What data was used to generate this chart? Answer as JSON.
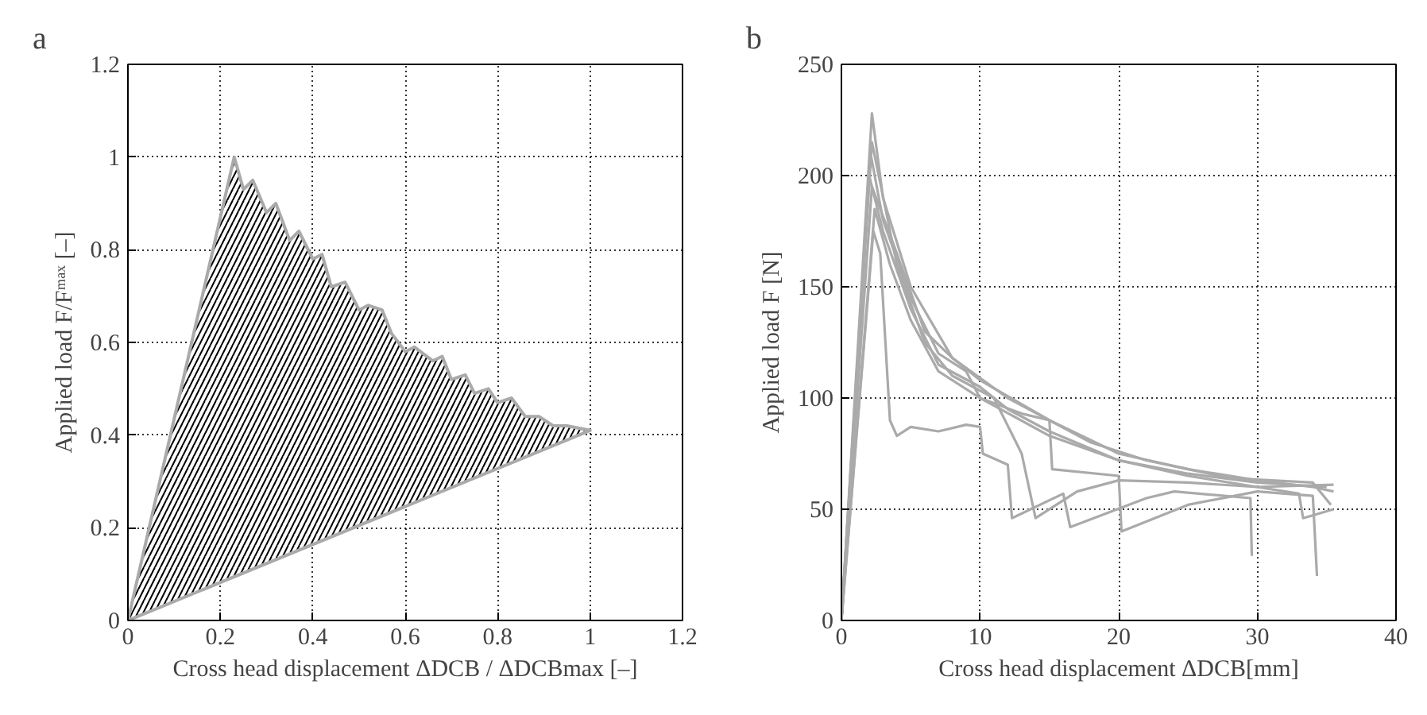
{
  "chart_data": [
    {
      "type": "area",
      "title": "a",
      "xlabel": "Cross head displacement ΔDCB / ΔDCBmax [–]",
      "ylabel": "Applied load F/Fᵐᵃˣ [–]",
      "xlim": [
        0,
        1.2
      ],
      "ylim": [
        0,
        1.2
      ],
      "xticks": [
        0,
        0.2,
        0.4,
        0.6,
        0.8,
        1,
        1.2
      ],
      "yticks": [
        0,
        0.2,
        0.4,
        0.6,
        0.8,
        1,
        1.2
      ],
      "grid": true,
      "series": [
        {
          "color": "#aaaaaa",
          "x": [
            0,
            0.23,
            0.25,
            0.27,
            0.3,
            0.32,
            0.35,
            0.37,
            0.4,
            0.42,
            0.44,
            0.47,
            0.5,
            0.52,
            0.55,
            0.57,
            0.6,
            0.62,
            0.66,
            0.68,
            0.7,
            0.73,
            0.75,
            0.78,
            0.8,
            0.83,
            0.86,
            0.89,
            0.92,
            0.95,
            1.0,
            0
          ],
          "values": [
            0,
            1.0,
            0.93,
            0.95,
            0.88,
            0.9,
            0.82,
            0.84,
            0.78,
            0.79,
            0.72,
            0.73,
            0.67,
            0.68,
            0.67,
            0.62,
            0.58,
            0.59,
            0.56,
            0.57,
            0.52,
            0.53,
            0.49,
            0.5,
            0.47,
            0.48,
            0.44,
            0.44,
            0.42,
            0.42,
            0.41,
            0
          ]
        }
      ]
    },
    {
      "type": "line",
      "title": "b",
      "xlabel": "Cross head displacement ΔDCB[mm]",
      "ylabel": "Applied load F [N]",
      "xlim": [
        0,
        40
      ],
      "ylim": [
        0,
        250
      ],
      "xticks": [
        0,
        10,
        20,
        30,
        40
      ],
      "yticks": [
        0,
        50,
        100,
        150,
        200,
        250
      ],
      "grid": true,
      "line_style": "solid",
      "series": [
        {
          "color": "#aaaaaa",
          "x": [
            0,
            2.2,
            3,
            5,
            8,
            10,
            15,
            20,
            25,
            30,
            34,
            35.5
          ],
          "values": [
            0,
            228,
            190,
            150,
            118,
            108,
            90,
            75,
            68,
            63,
            60,
            58
          ]
        },
        {
          "color": "#aaaaaa",
          "x": [
            0,
            2.0,
            3,
            5,
            7,
            10,
            12,
            15,
            20,
            25,
            30,
            35
          ],
          "values": [
            0,
            200,
            175,
            140,
            115,
            105,
            95,
            85,
            72,
            66,
            62,
            60
          ]
        },
        {
          "color": "#aaaaaa",
          "x": [
            0,
            2.3,
            2.8,
            3.5,
            4,
            5,
            7,
            9,
            10,
            10.2,
            12,
            12.3,
            16,
            16.5,
            22,
            24,
            29.5,
            29.6
          ],
          "values": [
            0,
            175,
            165,
            90,
            83,
            87,
            85,
            88,
            87,
            75,
            70,
            46,
            57,
            42,
            55,
            58,
            55,
            29
          ]
        },
        {
          "color": "#aaaaaa",
          "x": [
            0,
            2.1,
            3,
            5,
            7,
            9,
            10,
            13,
            15,
            15.2,
            20,
            20.2,
            25,
            30,
            34,
            34.3
          ],
          "values": [
            0,
            210,
            180,
            145,
            120,
            112,
            100,
            93,
            90,
            68,
            65,
            40,
            52,
            58,
            56,
            20
          ]
        },
        {
          "color": "#aaaaaa",
          "x": [
            0,
            2.2,
            4,
            6,
            8,
            11,
            13,
            14,
            17,
            20,
            25,
            30,
            35.5
          ],
          "values": [
            0,
            215,
            160,
            125,
            110,
            100,
            75,
            46,
            58,
            63,
            62,
            60,
            61
          ]
        },
        {
          "color": "#aaaaaa",
          "x": [
            0,
            2.4,
            3.5,
            5,
            7,
            10,
            15,
            20,
            25,
            30,
            33,
            33.3,
            35.5
          ],
          "values": [
            0,
            185,
            160,
            135,
            112,
            100,
            83,
            72,
            65,
            60,
            57,
            46,
            50
          ]
        },
        {
          "color": "#aaaaaa",
          "x": [
            0,
            2.2,
            4,
            6,
            8,
            12,
            18,
            22,
            28,
            34,
            35.3
          ],
          "values": [
            0,
            195,
            165,
            130,
            118,
            100,
            80,
            72,
            64,
            62,
            52
          ]
        }
      ]
    }
  ]
}
